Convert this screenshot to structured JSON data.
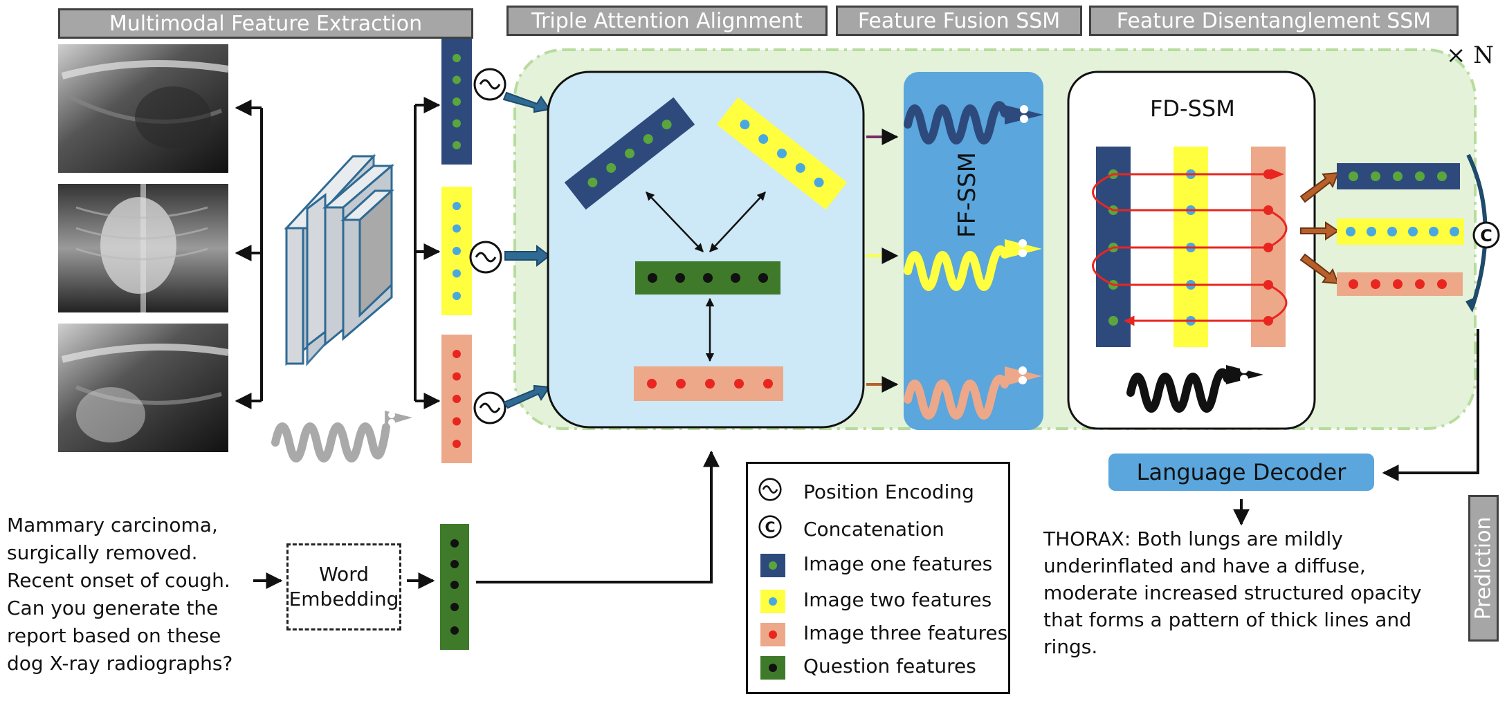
{
  "headers": {
    "extraction": "Multimodal Feature Extraction",
    "alignment": "Triple Attention Alignment",
    "fusion": "Feature Fusion SSM",
    "disentangle": "Feature Disentanglement SSM"
  },
  "repeat_label": "× N",
  "ff_ssm_label": "FF-SSM",
  "fd_ssm_label": "FD-SSM",
  "word_embedding": {
    "line1": "Word",
    "line2": "Embedding"
  },
  "question_text": "Mammary carcinoma, surgically removed. Recent onset of cough. Can you generate the report based on these dog X-ray radiographs?",
  "decoder_label": "Language Decoder",
  "answer_text": "THORAX: Both lungs are mildly underinflated and have a diffuse, moderate increased structured opacity that forms a pattern of thick lines and rings.",
  "prediction_label": "Prediction",
  "legend": {
    "position_encoding": "Position Encoding",
    "concatenation": "Concatenation",
    "image_one": "Image one features",
    "image_two": "Image two features",
    "image_three": "Image three features",
    "question": "Question features"
  },
  "colors": {
    "image_one": "#2e4a7d",
    "image_two": "#ffff40",
    "image_three": "#eda88a",
    "question": "#3e7a2a",
    "green_dot": "#5aa63c",
    "blue_dot": "#4aa8e0",
    "red_dot": "#e8261f",
    "panel_bg": "#e3f2d9",
    "tri_bg": "#cde8f6",
    "ff_bg": "#5aa6dd",
    "header_bg": "#a6a6a6"
  }
}
